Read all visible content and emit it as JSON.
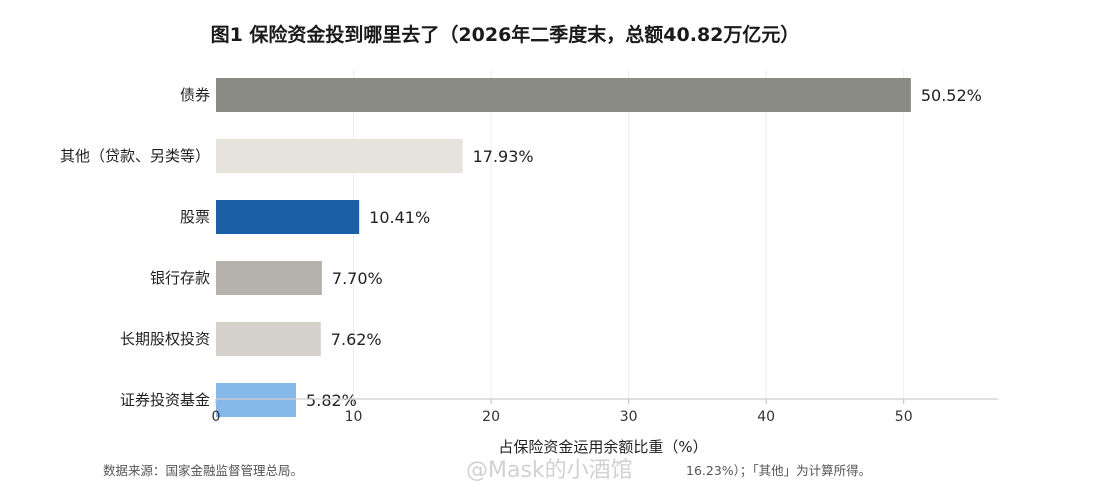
{
  "chart_data": {
    "type": "bar",
    "orientation": "horizontal",
    "title": "图1  保险资金投到哪里去了（2026年二季度末，总额40.82万亿元）",
    "xlabel": "占保险资金运用余额比重（%）",
    "ylabel": "",
    "xlim": [
      0,
      57
    ],
    "xticks": [
      0,
      10,
      20,
      30,
      40,
      50
    ],
    "grid": true,
    "categories": [
      "债券",
      "其他（贷款、另类等）",
      "股票",
      "银行存款",
      "长期股权投资",
      "证券投资基金"
    ],
    "values": [
      50.52,
      17.93,
      10.41,
      7.7,
      7.62,
      5.82
    ],
    "value_labels": [
      "50.52%",
      "17.93%",
      "10.41%",
      "7.70%",
      "7.62%",
      "5.82%"
    ],
    "colors": [
      "#8a8a84",
      "#e6e3dd",
      "#1a5fa6",
      "#b5b2ac",
      "#d5d2cb",
      "#86b8ea"
    ]
  },
  "footnote": {
    "left": "数据来源：国家金融监督管理总局。",
    "right": "16.23%）；「其他」为计算所得。"
  },
  "watermark": "@Mask的小酒馆"
}
